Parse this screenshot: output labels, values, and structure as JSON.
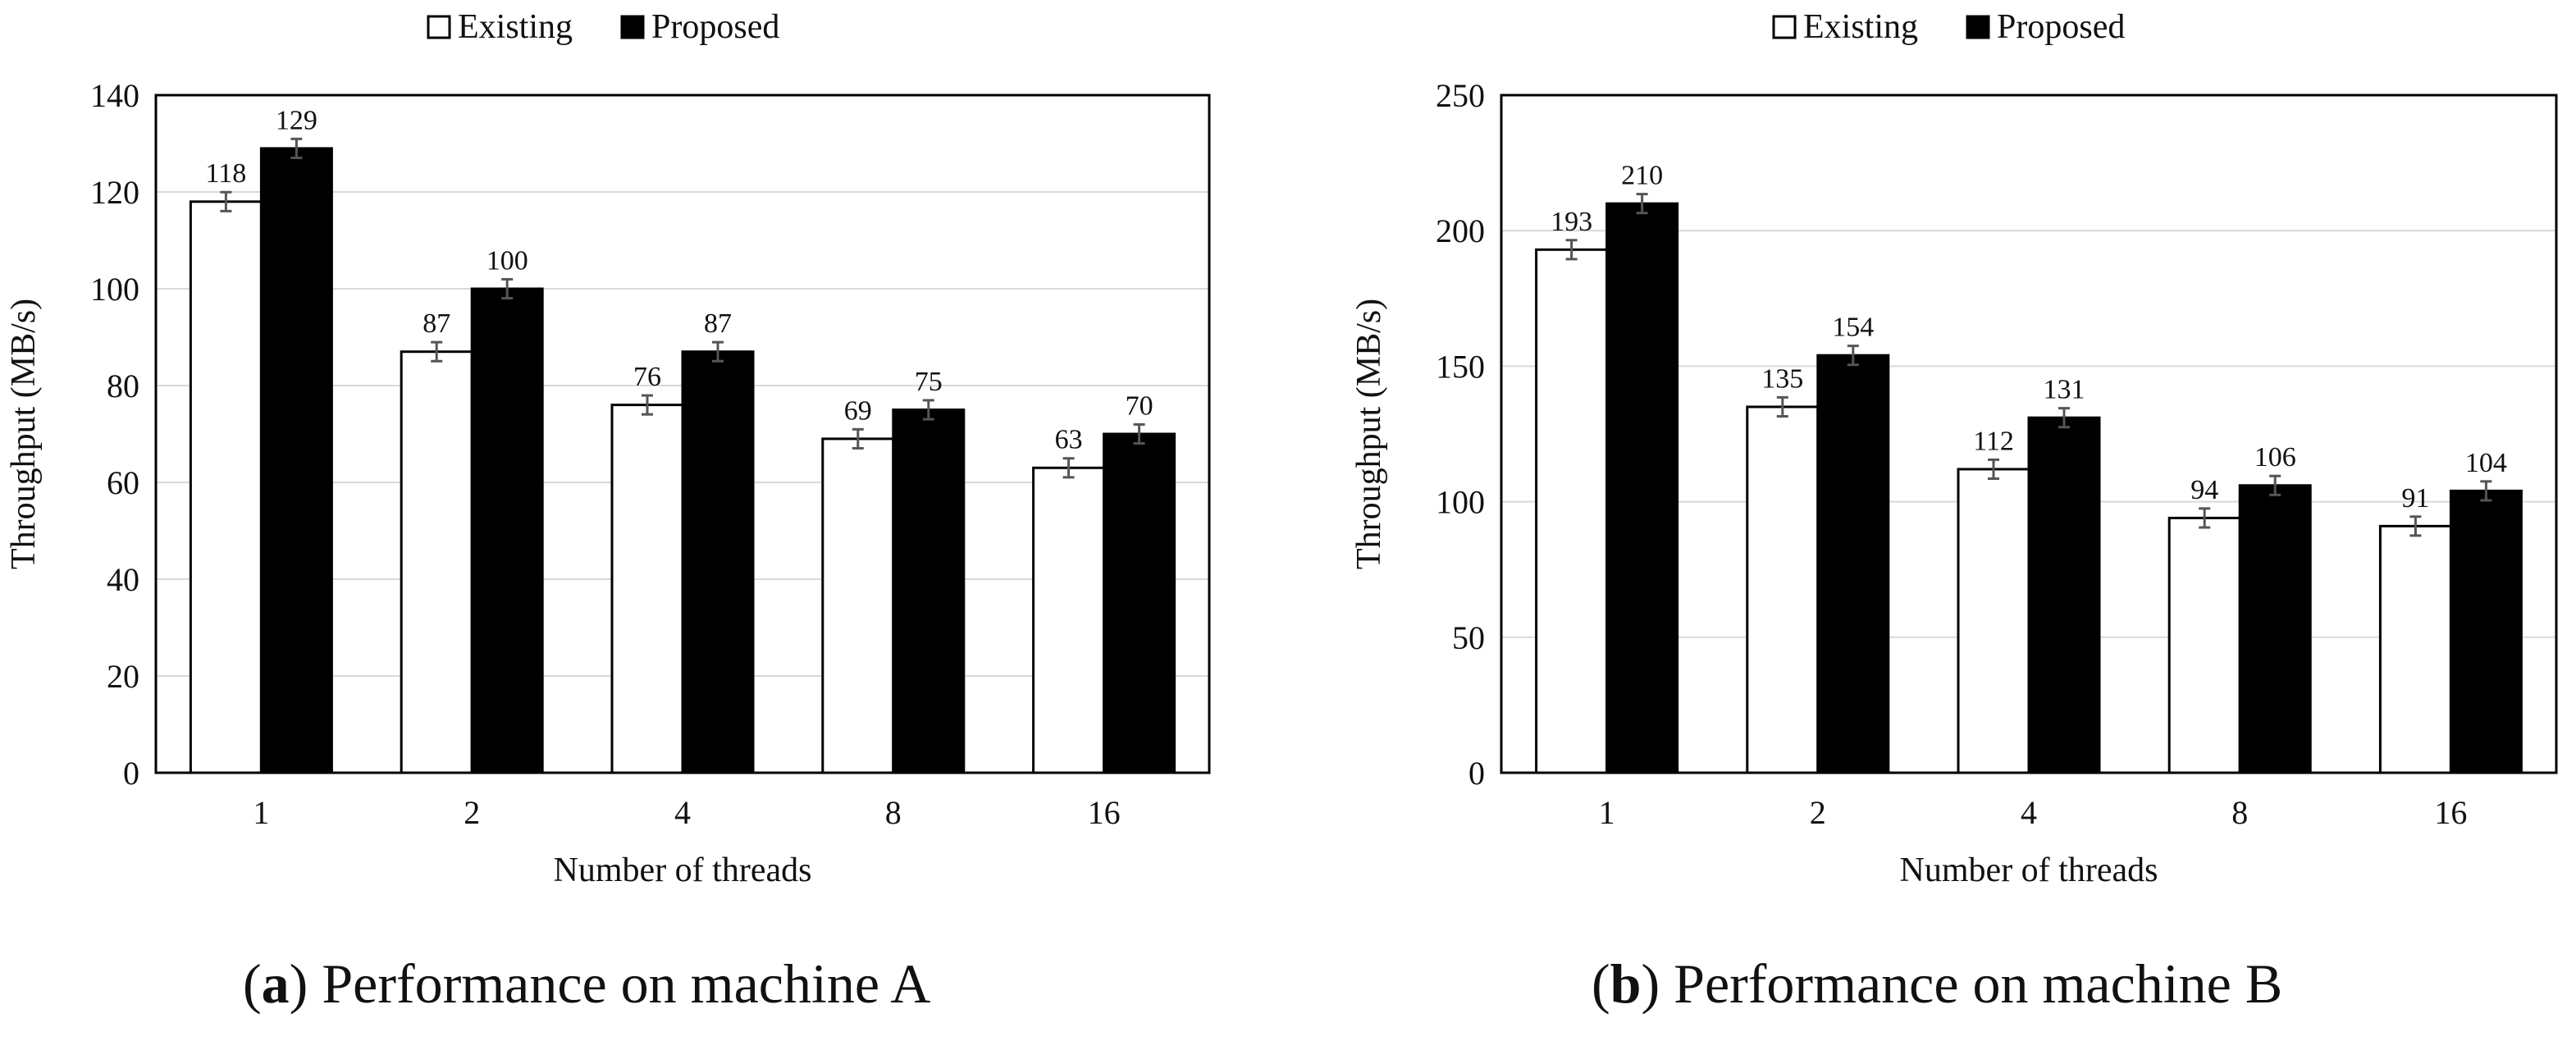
{
  "chart_data": [
    {
      "type": "bar",
      "subfigure_letter": "a",
      "caption": "Performance on machine A",
      "title": "",
      "xlabel": "Number of threads",
      "ylabel": "Throughput (MB/s)",
      "categories": [
        "1",
        "2",
        "4",
        "8",
        "16"
      ],
      "ylim": [
        0,
        140
      ],
      "yticks": [
        0,
        20,
        40,
        60,
        80,
        100,
        120,
        140
      ],
      "grid": true,
      "legend_position": "top-center",
      "error_bars": true,
      "series": [
        {
          "name": "Existing",
          "color": "#ffffff",
          "values": [
            118,
            87,
            76,
            69,
            63
          ],
          "labels": [
            "118",
            "87",
            "76",
            "69",
            "63"
          ]
        },
        {
          "name": "Proposed",
          "color": "#000000",
          "values": [
            129,
            100,
            87,
            75,
            70
          ],
          "labels": [
            "129",
            "100",
            "87",
            "75",
            "70"
          ]
        }
      ]
    },
    {
      "type": "bar",
      "subfigure_letter": "b",
      "caption": "Performance on machine B",
      "title": "",
      "xlabel": "Number of threads",
      "ylabel": "Throughput (MB/s)",
      "categories": [
        "1",
        "2",
        "4",
        "8",
        "16"
      ],
      "ylim": [
        0,
        250
      ],
      "yticks": [
        0,
        50,
        100,
        150,
        200,
        250
      ],
      "grid": true,
      "legend_position": "top-center",
      "error_bars": true,
      "series": [
        {
          "name": "Existing",
          "color": "#ffffff",
          "values": [
            193,
            135,
            112,
            94,
            91
          ],
          "labels": [
            "193",
            "135",
            "112",
            "94",
            "91"
          ]
        },
        {
          "name": "Proposed",
          "color": "#000000",
          "values": [
            210,
            154,
            131,
            106,
            104
          ],
          "labels": [
            "210",
            "154",
            "131",
            "106",
            "104"
          ]
        }
      ]
    }
  ]
}
